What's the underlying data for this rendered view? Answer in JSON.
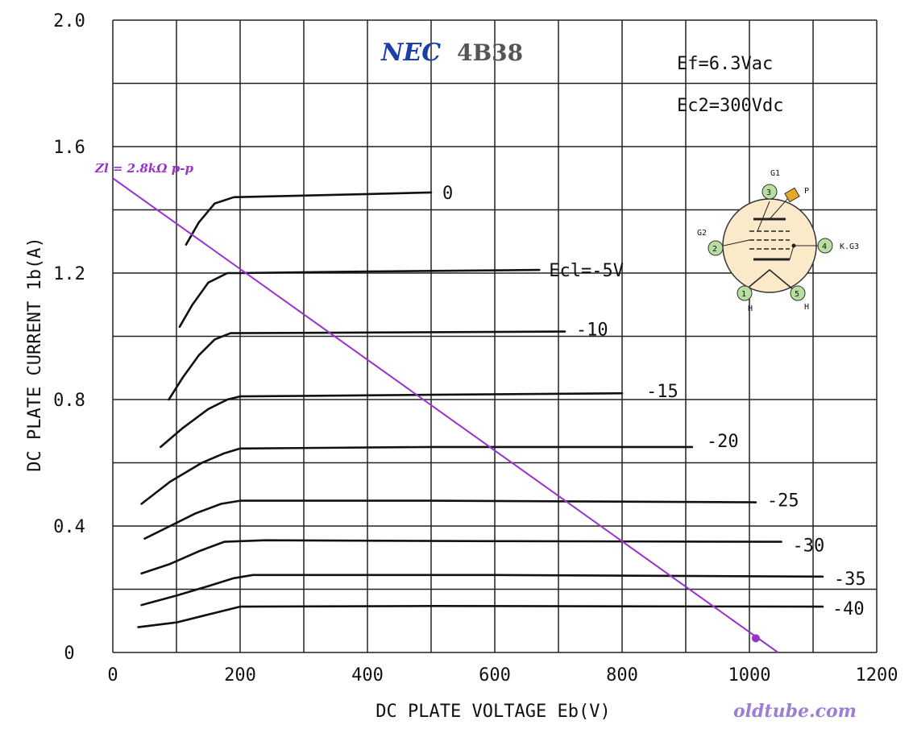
{
  "chart_data": {
    "type": "line",
    "brand": "NEC",
    "model": "4B38",
    "xlabel": "DC PLATE VOLTAGE Eb(V)",
    "ylabel": "DC PLATE CURRENT 1b(A)",
    "xlim": [
      0,
      1200
    ],
    "ylim": [
      0,
      2.0
    ],
    "x_ticks": [
      "0",
      "200",
      "400",
      "600",
      "800",
      "1000",
      "1200"
    ],
    "y_ticks": [
      "0",
      "0.4",
      "0.8",
      "1.2",
      "1.6",
      "2.0"
    ],
    "grid": true,
    "conditions": [
      "Ef=6.3Vac",
      "Ec2=300Vdc"
    ],
    "series": [
      {
        "name": "0",
        "points": [
          [
            115,
            1.29
          ],
          [
            135,
            1.36
          ],
          [
            160,
            1.42
          ],
          [
            190,
            1.44
          ],
          [
            300,
            1.445
          ],
          [
            400,
            1.45
          ],
          [
            500,
            1.455
          ]
        ]
      },
      {
        "name": "Ecl=-5V",
        "points": [
          [
            105,
            1.03
          ],
          [
            125,
            1.1
          ],
          [
            150,
            1.17
          ],
          [
            180,
            1.2
          ],
          [
            200,
            1.2
          ],
          [
            400,
            1.205
          ],
          [
            670,
            1.21
          ]
        ]
      },
      {
        "name": "-10",
        "points": [
          [
            88,
            0.8
          ],
          [
            110,
            0.87
          ],
          [
            135,
            0.94
          ],
          [
            160,
            0.99
          ],
          [
            185,
            1.01
          ],
          [
            400,
            1.012
          ],
          [
            710,
            1.015
          ]
        ]
      },
      {
        "name": "-15",
        "points": [
          [
            75,
            0.65
          ],
          [
            110,
            0.71
          ],
          [
            150,
            0.77
          ],
          [
            180,
            0.8
          ],
          [
            200,
            0.81
          ],
          [
            500,
            0.815
          ],
          [
            800,
            0.82
          ]
        ]
      },
      {
        "name": "-20",
        "points": [
          [
            45,
            0.47
          ],
          [
            90,
            0.54
          ],
          [
            140,
            0.6
          ],
          [
            175,
            0.63
          ],
          [
            200,
            0.645
          ],
          [
            500,
            0.65
          ],
          [
            910,
            0.65
          ]
        ]
      },
      {
        "name": "-25",
        "points": [
          [
            50,
            0.36
          ],
          [
            90,
            0.4
          ],
          [
            130,
            0.44
          ],
          [
            170,
            0.47
          ],
          [
            200,
            0.48
          ],
          [
            500,
            0.48
          ],
          [
            1010,
            0.475
          ]
        ]
      },
      {
        "name": "-30",
        "points": [
          [
            45,
            0.25
          ],
          [
            90,
            0.28
          ],
          [
            135,
            0.32
          ],
          [
            175,
            0.35
          ],
          [
            240,
            0.355
          ],
          [
            600,
            0.352
          ],
          [
            1050,
            0.35
          ]
        ]
      },
      {
        "name": "-35",
        "points": [
          [
            45,
            0.15
          ],
          [
            100,
            0.18
          ],
          [
            150,
            0.21
          ],
          [
            190,
            0.235
          ],
          [
            220,
            0.245
          ],
          [
            600,
            0.245
          ],
          [
            1115,
            0.24
          ]
        ]
      },
      {
        "name": "-40",
        "points": [
          [
            40,
            0.08
          ],
          [
            100,
            0.095
          ],
          [
            150,
            0.12
          ],
          [
            200,
            0.145
          ],
          [
            500,
            0.147
          ],
          [
            1115,
            0.145
          ]
        ]
      }
    ],
    "load_line": {
      "name": "Zl = 2.8kΩ p-p",
      "points": [
        [
          0,
          1.5
        ],
        [
          1045,
          0.0
        ]
      ],
      "marker": [
        1010,
        0.045
      ],
      "color": "#9933cc"
    },
    "tube_diagram": {
      "pins": [
        {
          "num": "3",
          "label": "G1"
        },
        {
          "num": "",
          "label": "P"
        },
        {
          "num": "4",
          "label": "K.G3"
        },
        {
          "num": "5",
          "label": "H"
        },
        {
          "num": "1",
          "label": "H"
        },
        {
          "num": "2",
          "label": "G2"
        }
      ]
    },
    "watermark": "oldtube.com",
    "colors": {
      "brand": "#1a3fa8",
      "model": "#555555",
      "load_line": "#9933cc",
      "watermark": "#9b7fd6",
      "pin_fill": "#b8dfa0",
      "envelope_fill": "#fbeac9"
    }
  }
}
